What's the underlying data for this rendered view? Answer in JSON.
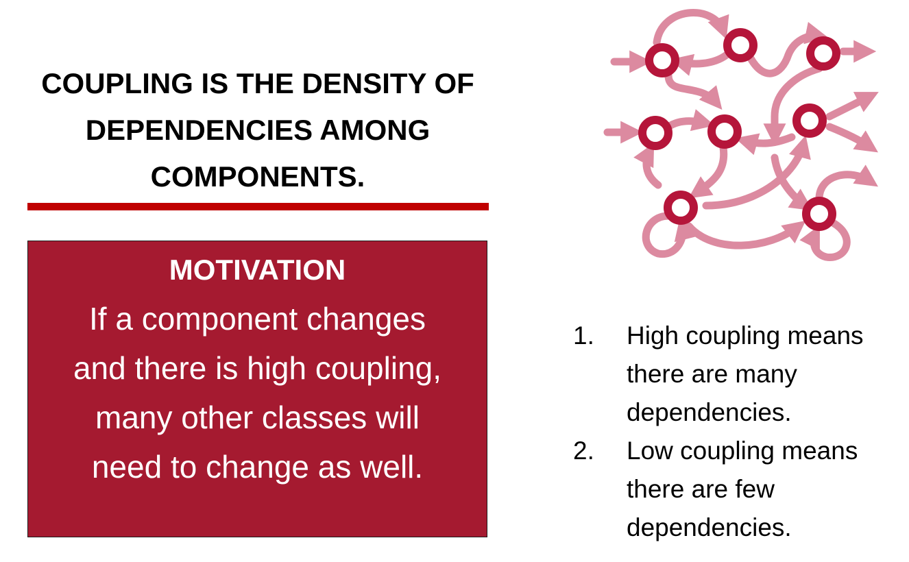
{
  "title": {
    "lines": [
      "COUPLING IS THE DENSITY OF",
      "DEPENDENCIES AMONG",
      "COMPONENTS."
    ]
  },
  "motivation": {
    "heading": "MOTIVATION",
    "body_lines": [
      "If a component changes",
      "and there is high coupling,",
      "many other classes will",
      "need to change as well."
    ]
  },
  "points": [
    {
      "number": "1.",
      "lines": [
        "High coupling means",
        "there are many",
        "dependencies."
      ]
    },
    {
      "number": "2.",
      "lines": [
        "Low coupling means",
        "there are few",
        "dependencies."
      ]
    }
  ],
  "colors": {
    "accent_rule": "#c00000",
    "box_fill": "#a51a30",
    "node_ring": "#b5153a",
    "arrow": "#dc8aa0"
  },
  "diagram": {
    "icon": "dependency-network-icon",
    "node_count": 8
  }
}
